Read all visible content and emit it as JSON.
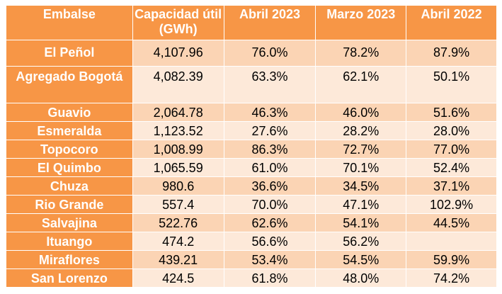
{
  "headers": [
    "Embalse",
    "Capacidad útil (GWh)",
    "Abril 2023",
    "Marzo 2023",
    "Abril 2022"
  ],
  "rows": [
    [
      "El Peñol",
      "4,107.96",
      "76.0%",
      "78.2%",
      "87.9%"
    ],
    [
      "Agregado Bogotá",
      "4,082.39",
      "63.3%",
      "62.1%",
      "50.1%"
    ],
    [
      "Guavio",
      "2,064.78",
      "46.3%",
      "46.0%",
      "51.6%"
    ],
    [
      "Esmeralda",
      "1,123.52",
      "27.6%",
      "28.2%",
      "28.0%"
    ],
    [
      "Topocoro",
      "1,008.99",
      "86.3%",
      "72.7%",
      "77.0%"
    ],
    [
      "El Quimbo",
      "1,065.59",
      "61.0%",
      "70.1%",
      "52.4%"
    ],
    [
      "Chuza",
      "980.6",
      "36.6%",
      "34.5%",
      "37.1%"
    ],
    [
      "Rio Grande",
      "557.4",
      "70.0%",
      "47.1%",
      "102.9%"
    ],
    [
      "Salvajina",
      "522.76",
      "62.6%",
      "54.1%",
      "44.5%"
    ],
    [
      "Ituango",
      "474.2",
      "56.6%",
      "56.2%",
      ""
    ],
    [
      "Miraflores",
      "439.21",
      "53.4%",
      "54.5%",
      "59.9%"
    ],
    [
      "San Lorenzo",
      "424.5",
      "61.8%",
      "48.0%",
      "74.2%"
    ]
  ],
  "colors": {
    "header": "#F79646",
    "row_dark": "#FBD4B4",
    "row_light": "#FDE9D9"
  }
}
